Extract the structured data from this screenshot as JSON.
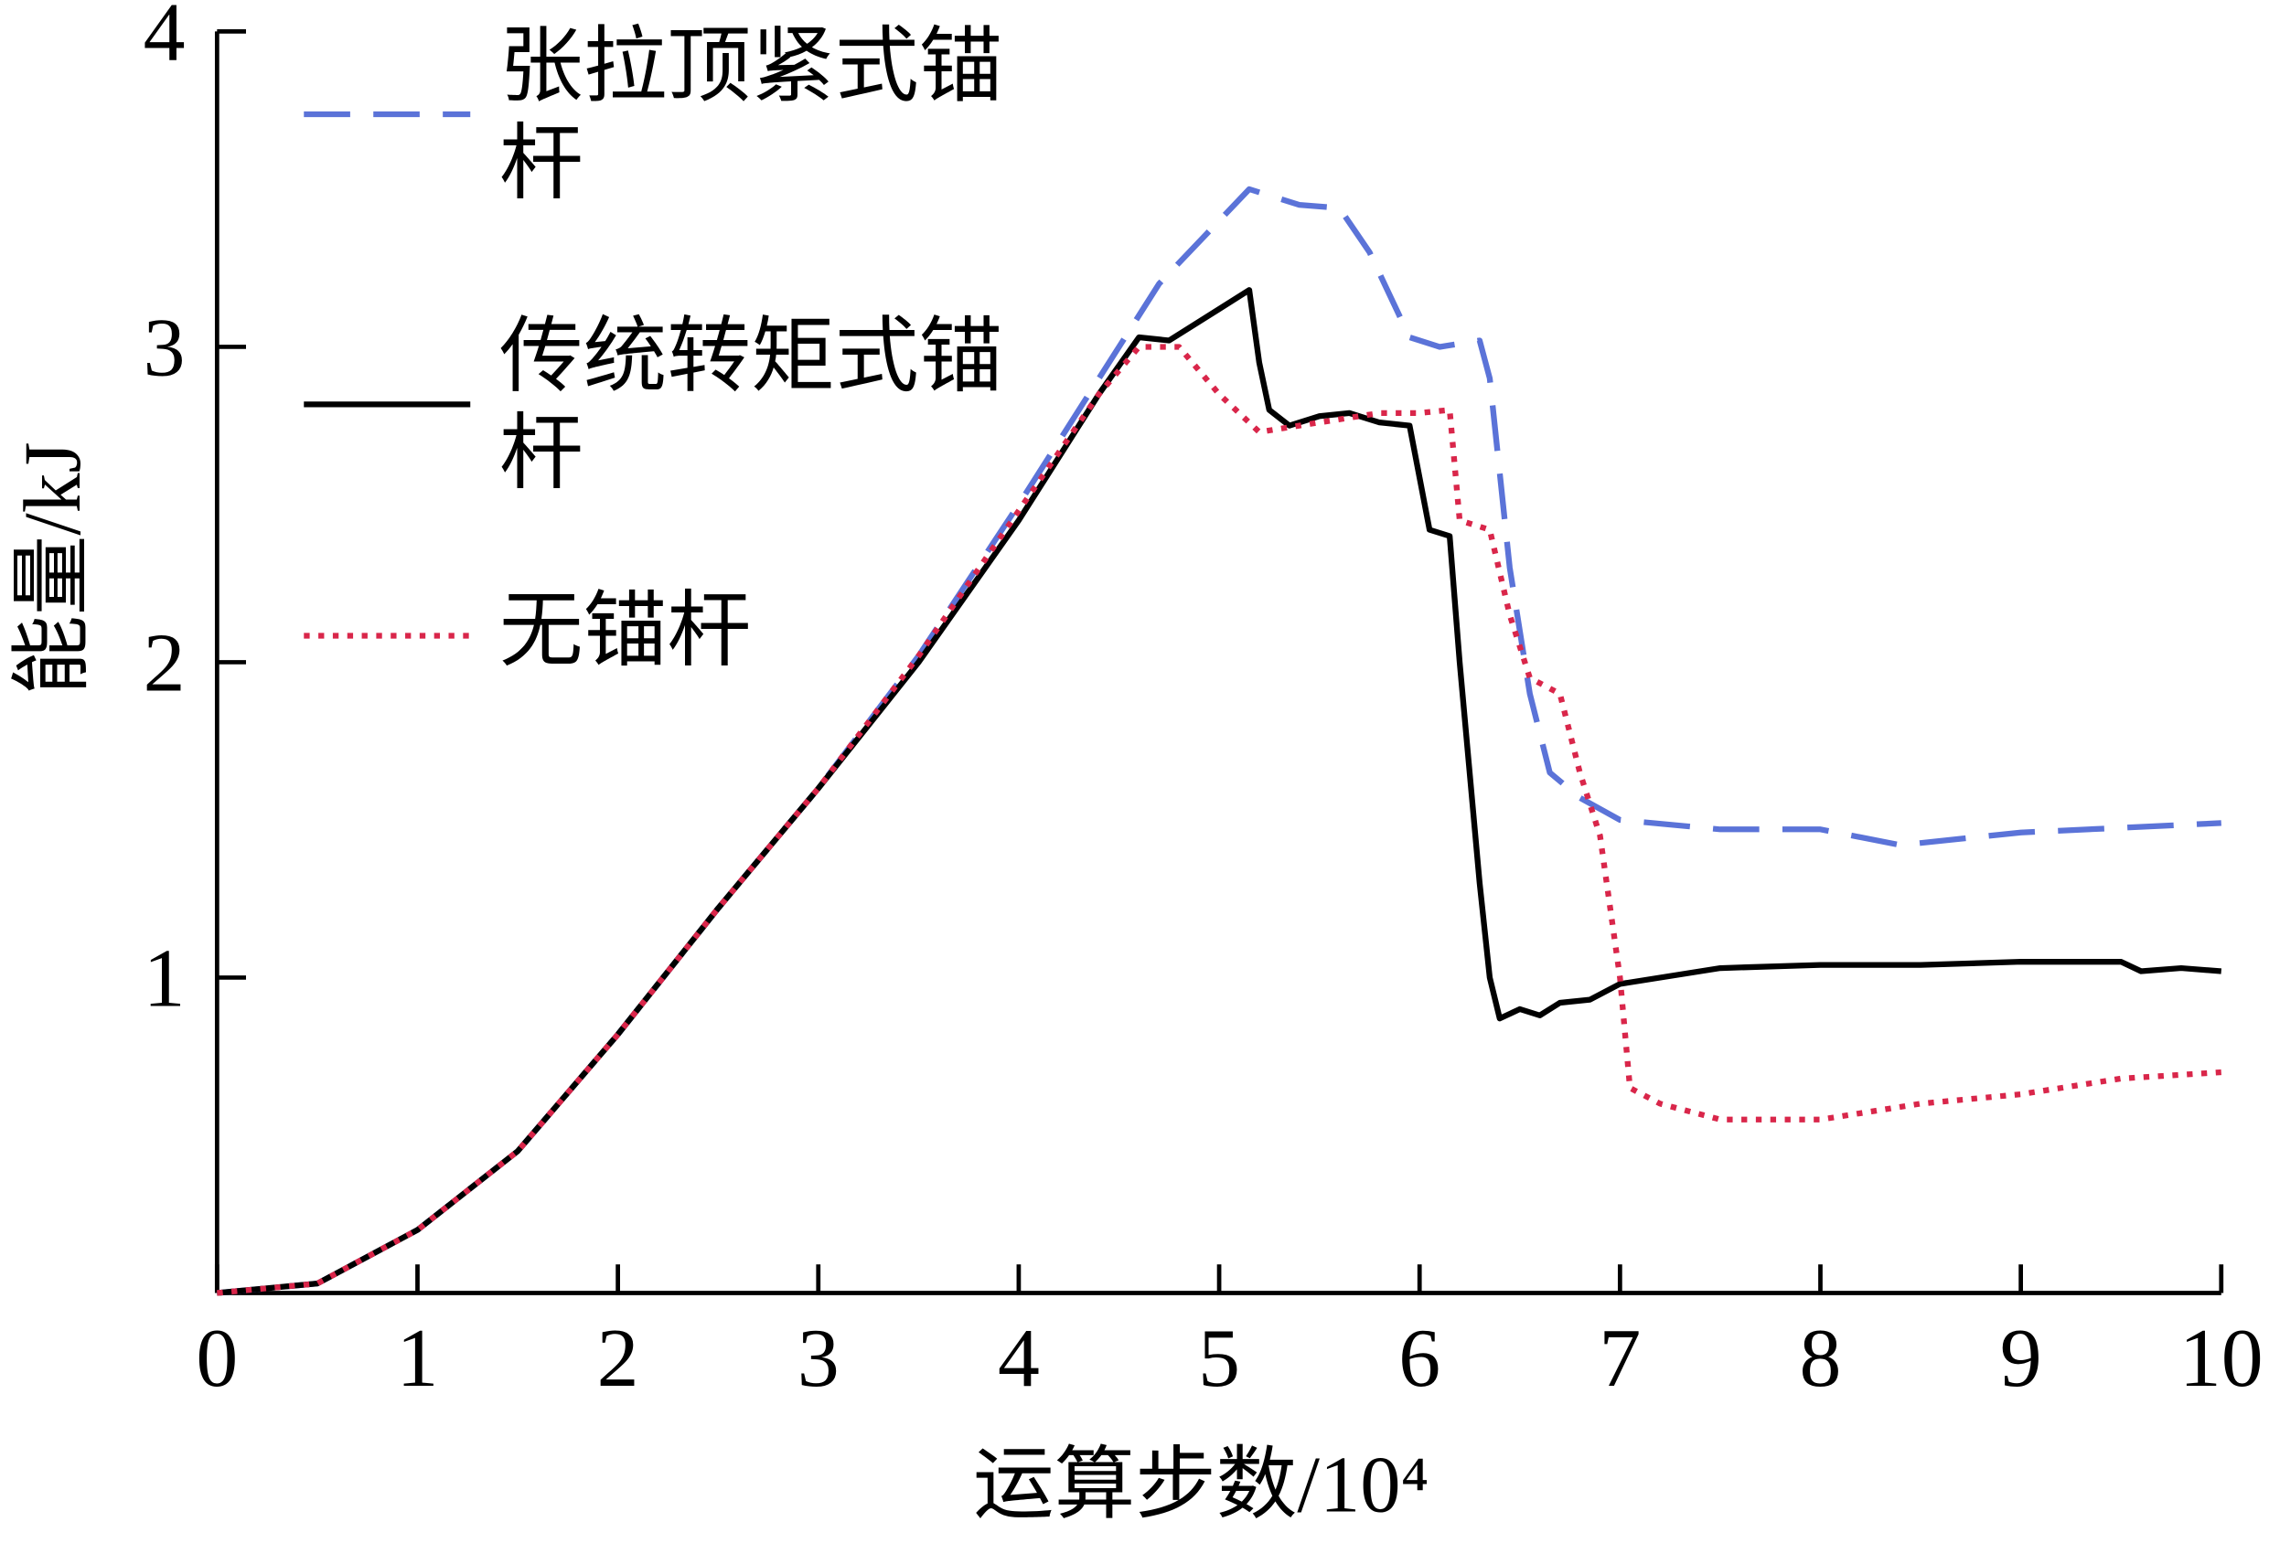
{
  "chart_data": {
    "type": "line",
    "xlabel": "运算步数/10⁴",
    "ylabel": "能量/kJ",
    "xlim": [
      0,
      10
    ],
    "xticks": [
      0,
      1,
      2,
      3,
      4,
      5,
      6,
      7,
      8,
      9,
      10
    ],
    "ylim": [
      0,
      4
    ],
    "yticks": [
      1,
      2,
      3,
      4
    ],
    "series": [
      {
        "name": "张拉顶紧式锚杆",
        "color": "#5b73d8",
        "style": "dashed",
        "x": [
          0,
          0.5,
          1,
          1.5,
          2,
          2.5,
          3,
          3.5,
          4,
          4.5,
          4.7,
          5,
          5.15,
          5.4,
          5.6,
          5.75,
          5.95,
          6.1,
          6.3,
          6.35,
          6.45,
          6.55,
          6.65,
          6.8,
          7,
          7.5,
          8,
          8.4,
          9,
          10
        ],
        "values": [
          0,
          0.03,
          0.2,
          0.45,
          0.82,
          1.22,
          1.6,
          2.02,
          2.5,
          3.0,
          3.2,
          3.4,
          3.5,
          3.45,
          3.44,
          3.3,
          3.03,
          3.0,
          3.02,
          2.9,
          2.3,
          1.9,
          1.65,
          1.57,
          1.5,
          1.47,
          1.47,
          1.42,
          1.46,
          1.49
        ]
      },
      {
        "name": "传统转矩式锚杆",
        "color": "#000000",
        "style": "solid",
        "x": [
          0,
          0.5,
          1,
          1.5,
          2,
          2.5,
          3,
          3.5,
          4,
          4.4,
          4.6,
          4.75,
          5,
          5.15,
          5.2,
          5.25,
          5.35,
          5.5,
          5.65,
          5.8,
          5.95,
          6.05,
          6.15,
          6.2,
          6.3,
          6.35,
          6.4,
          6.5,
          6.6,
          6.7,
          6.85,
          7,
          7.5,
          8,
          8.5,
          9,
          9.5,
          9.6,
          9.8,
          10
        ],
        "values": [
          0,
          0.03,
          0.2,
          0.45,
          0.82,
          1.22,
          1.6,
          2.0,
          2.45,
          2.85,
          3.03,
          3.02,
          3.12,
          3.18,
          2.95,
          2.8,
          2.75,
          2.78,
          2.79,
          2.76,
          2.75,
          2.42,
          2.4,
          2.0,
          1.3,
          1.0,
          0.87,
          0.9,
          0.88,
          0.92,
          0.93,
          0.98,
          1.03,
          1.04,
          1.04,
          1.05,
          1.05,
          1.02,
          1.03,
          1.02
        ]
      },
      {
        "name": "无锚杆",
        "color": "#d9264a",
        "style": "dotted",
        "x": [
          0,
          0.5,
          1,
          1.5,
          2,
          2.5,
          3,
          3.5,
          4,
          4.4,
          4.6,
          4.8,
          5,
          5.2,
          5.4,
          5.6,
          5.8,
          6.0,
          6.15,
          6.2,
          6.35,
          6.45,
          6.55,
          6.7,
          6.8,
          6.9,
          7.0,
          7.05,
          7.2,
          7.5,
          8,
          8.5,
          9,
          9.5,
          10
        ],
        "values": [
          0,
          0.03,
          0.2,
          0.45,
          0.82,
          1.22,
          1.6,
          2.02,
          2.48,
          2.85,
          3.0,
          3.0,
          2.85,
          2.73,
          2.75,
          2.77,
          2.79,
          2.79,
          2.8,
          2.45,
          2.42,
          2.15,
          1.95,
          1.9,
          1.65,
          1.45,
          1.0,
          0.65,
          0.6,
          0.55,
          0.55,
          0.6,
          0.63,
          0.68,
          0.7
        ]
      }
    ]
  }
}
